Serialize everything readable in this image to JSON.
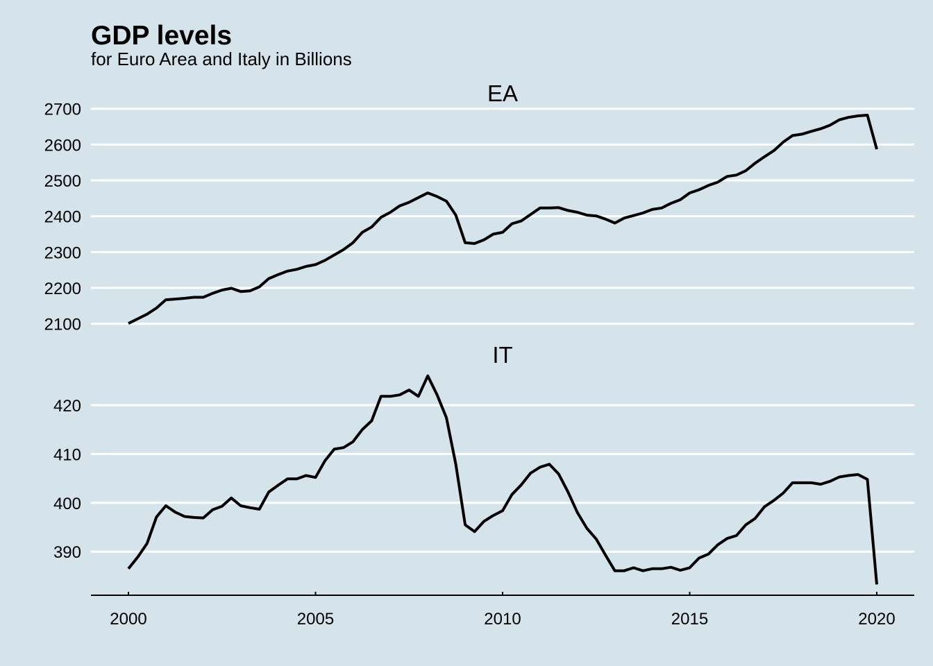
{
  "chart_data": {
    "type": "line",
    "title": "GDP levels",
    "subtitle": "for Euro Area and Italy in Billions",
    "xlabel": "",
    "ylabel": "",
    "x_ticks": [
      "2000",
      "2005",
      "2010",
      "2015",
      "2020"
    ],
    "x_range": [
      2000,
      2020
    ],
    "frequency": "quarterly",
    "x_start": "2000Q1",
    "grid": true,
    "legend": "none",
    "panels": [
      {
        "name": "EA",
        "ylim": [
          2100,
          2700
        ],
        "y_ticks": [
          "2100",
          "2200",
          "2300",
          "2400",
          "2500",
          "2600",
          "2700"
        ],
        "values": [
          2101,
          2114,
          2127,
          2144,
          2167,
          2169,
          2171,
          2174,
          2174,
          2185,
          2194,
          2199,
          2190,
          2192,
          2203,
          2226,
          2237,
          2247,
          2252,
          2260,
          2265,
          2277,
          2292,
          2307,
          2326,
          2355,
          2370,
          2397,
          2411,
          2429,
          2439,
          2452,
          2465,
          2455,
          2442,
          2403,
          2326,
          2324,
          2334,
          2350,
          2355,
          2379,
          2387,
          2405,
          2423,
          2423,
          2424,
          2416,
          2411,
          2403,
          2401,
          2392,
          2381,
          2395,
          2402,
          2409,
          2419,
          2423,
          2436,
          2446,
          2465,
          2474,
          2486,
          2495,
          2511,
          2515,
          2527,
          2548,
          2566,
          2583,
          2607,
          2625,
          2629,
          2637,
          2644,
          2654,
          2669,
          2676,
          2680,
          2682,
          2587
        ]
      },
      {
        "name": "IT",
        "ylim": [
          382,
          427
        ],
        "y_ticks": [
          "390",
          "400",
          "410",
          "420"
        ],
        "values": [
          386.5,
          388.9,
          391.7,
          397.1,
          399.4,
          398.1,
          397.2,
          397.0,
          396.9,
          398.6,
          399.3,
          401.0,
          399.4,
          399.0,
          398.7,
          402.2,
          403.6,
          404.9,
          404.9,
          405.6,
          405.2,
          408.6,
          411.0,
          411.3,
          412.5,
          415.0,
          416.8,
          421.8,
          421.8,
          422.1,
          423.1,
          421.8,
          426.0,
          422.1,
          417.4,
          407.9,
          395.5,
          394.1,
          396.2,
          397.4,
          398.4,
          401.7,
          403.7,
          406.1,
          407.3,
          407.9,
          405.9,
          402.2,
          398.0,
          394.8,
          392.6,
          389.3,
          386.1,
          386.1,
          386.7,
          386.1,
          386.5,
          386.5,
          386.8,
          386.2,
          386.7,
          388.7,
          389.5,
          391.4,
          392.7,
          393.3,
          395.5,
          396.8,
          399.2,
          400.5,
          402.0,
          404.1,
          404.1,
          404.1,
          403.8,
          404.4,
          405.3,
          405.6,
          405.8,
          404.8,
          383.3
        ]
      }
    ]
  }
}
